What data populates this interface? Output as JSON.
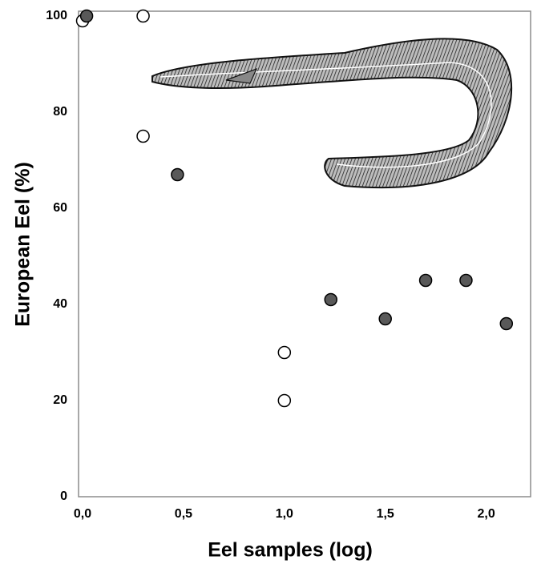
{
  "chart_data": {
    "type": "scatter",
    "xlabel": "Eel samples (log)",
    "ylabel": "European Eel (%)",
    "xlim": [
      -0.02,
      2.22
    ],
    "ylim": [
      0,
      101
    ],
    "xticks": [
      {
        "value": 0,
        "label": "0,0"
      },
      {
        "value": 0.5,
        "label": "0,5"
      },
      {
        "value": 1,
        "label": "1,0"
      },
      {
        "value": 1.5,
        "label": "1,5"
      },
      {
        "value": 2,
        "label": "2,0"
      }
    ],
    "yticks": [
      0,
      20,
      40,
      60,
      80,
      100
    ],
    "series": [
      {
        "color": "#ffffff",
        "x": [
          0,
          0.3,
          0.3,
          1.0,
          1.0
        ],
        "values": [
          99,
          100,
          75,
          30,
          20
        ]
      },
      {
        "color": "#595959",
        "x": [
          0.02,
          0.47,
          1.23,
          1.5,
          1.7,
          1.9,
          2.1
        ],
        "values": [
          100,
          67,
          41,
          37,
          45,
          45,
          36
        ]
      }
    ]
  }
}
